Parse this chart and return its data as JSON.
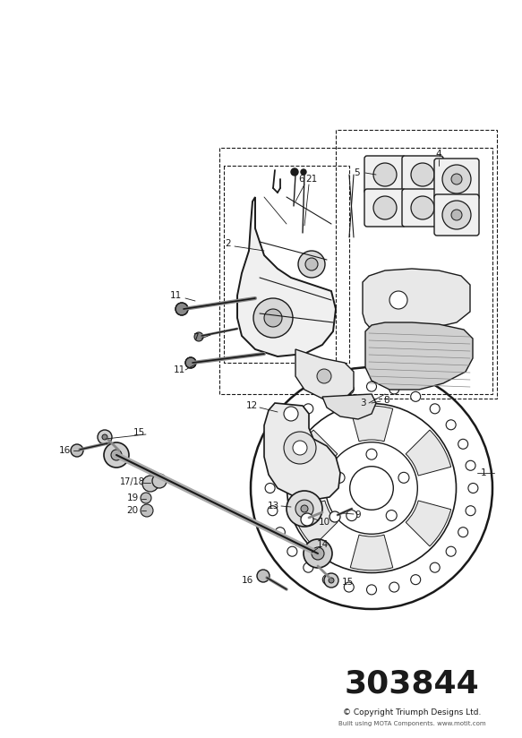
{
  "title": "303844",
  "copyright": "© Copyright Triumph Designs Ltd.",
  "sub_copyright": "Built using MOTA Components. www.motit.com",
  "bg_color": "#ffffff",
  "line_color": "#1a1a1a",
  "title_fontsize": 26,
  "fig_w": 5.83,
  "fig_h": 8.24,
  "dpi": 100
}
